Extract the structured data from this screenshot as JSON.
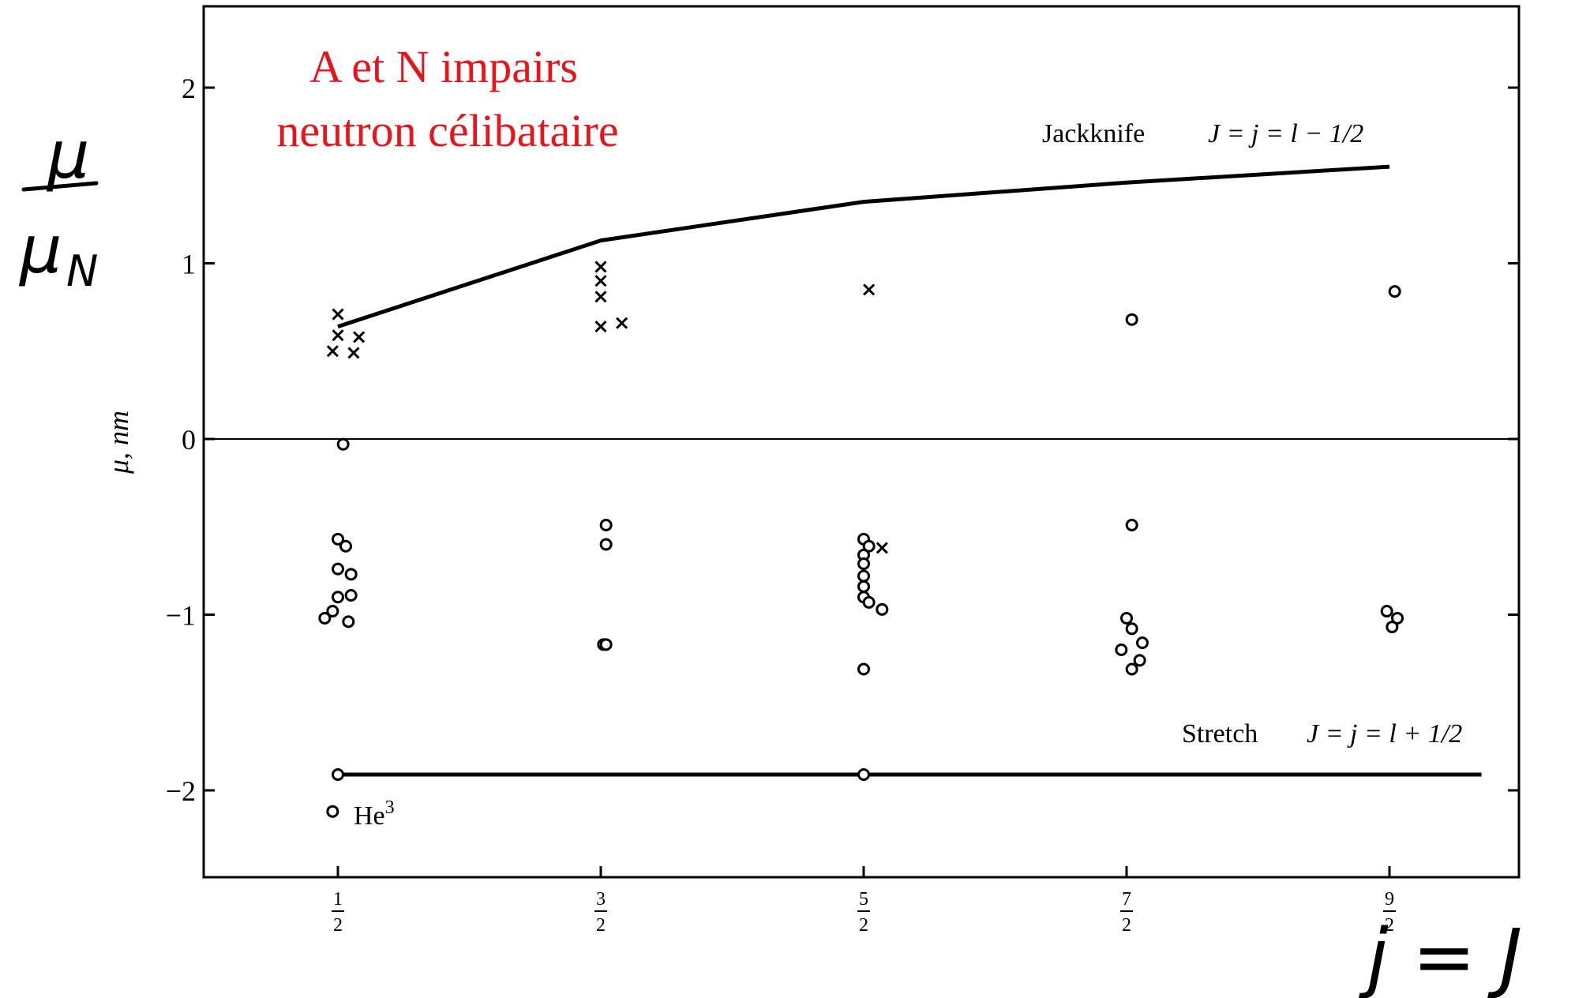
{
  "annotation_red": {
    "line1": "A et N impairs",
    "line2": "neutron célibataire",
    "color": "#e8141b"
  },
  "handwritten": {
    "ylabel_num": "μ",
    "ylabel_den": "μ",
    "ylabel_den_sub": "N",
    "xlabel": "j = J"
  },
  "chart_data": {
    "type": "scatter",
    "ylabel": "μ, nm",
    "xlabel": "",
    "ylim": [
      -2.5,
      2.5
    ],
    "x_categories": [
      "1/2",
      "3/2",
      "5/2",
      "7/2",
      "9/2"
    ],
    "yticks": [
      2,
      1,
      0,
      -1,
      -2
    ],
    "ytick_labels": [
      "2",
      "1",
      "0",
      "−1",
      "−2"
    ],
    "grid": false,
    "lines": [
      {
        "label_name": "Jackknife",
        "label_formula": "J = j = l − 1/2",
        "points": [
          [
            0.5,
            0.64
          ],
          [
            1.5,
            1.13
          ],
          [
            2.5,
            1.35
          ],
          [
            3.5,
            1.46
          ],
          [
            4.5,
            1.55
          ]
        ]
      },
      {
        "label_name": "Stretch",
        "label_formula": "J = j = l + 1/2",
        "points": [
          [
            0.5,
            -1.91
          ],
          [
            4.85,
            -1.91
          ]
        ]
      }
    ],
    "series": [
      {
        "marker": "cross",
        "points": [
          [
            0.5,
            0.71
          ],
          [
            0.5,
            0.59
          ],
          [
            0.48,
            0.5
          ],
          [
            0.56,
            0.49
          ],
          [
            0.58,
            0.58
          ],
          [
            1.5,
            0.98
          ],
          [
            1.5,
            0.9
          ],
          [
            1.5,
            0.81
          ],
          [
            1.5,
            0.64
          ],
          [
            1.58,
            0.66
          ],
          [
            2.52,
            0.85
          ],
          [
            2.57,
            -0.62
          ]
        ]
      },
      {
        "marker": "circle",
        "points": [
          [
            0.52,
            -0.03
          ],
          [
            0.5,
            -0.57
          ],
          [
            0.53,
            -0.61
          ],
          [
            0.5,
            -0.74
          ],
          [
            0.55,
            -0.77
          ],
          [
            0.5,
            -0.9
          ],
          [
            0.55,
            -0.89
          ],
          [
            0.48,
            -0.98
          ],
          [
            0.45,
            -1.02
          ],
          [
            0.54,
            -1.04
          ],
          [
            1.52,
            -0.49
          ],
          [
            1.52,
            -0.6
          ],
          [
            1.51,
            -1.17
          ],
          [
            1.52,
            -1.17
          ],
          [
            2.5,
            -0.57
          ],
          [
            2.52,
            -0.61
          ],
          [
            2.5,
            -0.66
          ],
          [
            2.5,
            -0.71
          ],
          [
            2.5,
            -0.78
          ],
          [
            2.5,
            -0.84
          ],
          [
            2.5,
            -0.9
          ],
          [
            2.52,
            -0.93
          ],
          [
            2.57,
            -0.97
          ],
          [
            2.5,
            -1.31
          ],
          [
            3.52,
            -0.49
          ],
          [
            3.5,
            -1.02
          ],
          [
            3.52,
            -1.08
          ],
          [
            3.56,
            -1.16
          ],
          [
            3.48,
            -1.2
          ],
          [
            3.55,
            -1.26
          ],
          [
            3.52,
            -1.31
          ],
          [
            3.52,
            0.68
          ],
          [
            4.52,
            0.84
          ],
          [
            4.49,
            -0.98
          ],
          [
            4.53,
            -1.02
          ],
          [
            4.51,
            -1.07
          ],
          [
            0.5,
            -1.91
          ],
          [
            2.5,
            -1.91
          ],
          [
            0.48,
            -2.12
          ]
        ]
      }
    ],
    "point_labels": [
      {
        "text": "He",
        "sup": "3",
        "x": 0.48,
        "y": -2.12
      }
    ]
  }
}
